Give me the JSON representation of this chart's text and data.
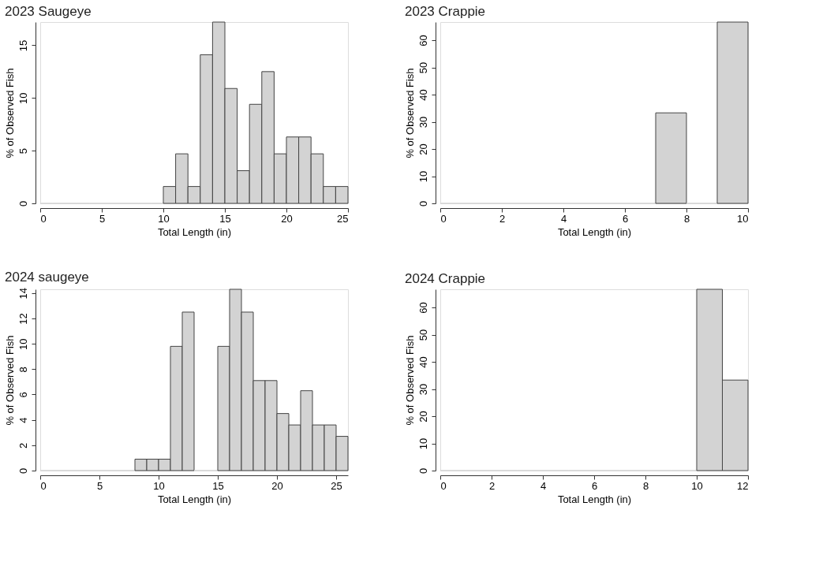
{
  "chart_data": [
    {
      "type": "histogram",
      "title": "2023 Saugeye",
      "xlabel": "Total Length (in)",
      "ylabel": "% of Observed Fish",
      "color": "#d3d3d3",
      "bins": [
        0,
        1,
        2,
        3,
        4,
        5,
        6,
        7,
        8,
        9,
        10,
        11,
        12,
        13,
        14,
        15,
        16,
        17,
        18,
        19,
        20,
        21,
        22,
        23,
        24,
        25
      ],
      "values": [
        0,
        0,
        0,
        0,
        0,
        0,
        0,
        0,
        0,
        0,
        1.6,
        4.7,
        1.6,
        14.1,
        17.2,
        10.9,
        3.1,
        9.4,
        12.5,
        4.7,
        6.3,
        6.3,
        4.7,
        1.6,
        1.6
      ],
      "xlim": [
        0,
        25
      ],
      "xticks": [
        0,
        5,
        10,
        15,
        20,
        25
      ],
      "ylim": [
        0,
        17.2
      ],
      "yticks": [
        0,
        5,
        10,
        15
      ]
    },
    {
      "type": "histogram",
      "title": "2023 Crappie",
      "xlabel": "Total Length (in)",
      "ylabel": "% of Observed Fish",
      "color": "#d3d3d3",
      "bins": [
        0,
        1,
        2,
        3,
        4,
        5,
        6,
        7,
        8,
        9,
        10
      ],
      "values": [
        0,
        0,
        0,
        0,
        0,
        0,
        0,
        33.3,
        0,
        66.7
      ],
      "xlim": [
        0,
        10
      ],
      "xticks": [
        0,
        2,
        4,
        6,
        8,
        10
      ],
      "ylim": [
        0,
        66.7
      ],
      "yticks": [
        0,
        10,
        20,
        30,
        40,
        50,
        60
      ]
    },
    {
      "type": "histogram",
      "title": "2024 saugeye",
      "xlabel": "Total Length (in)",
      "ylabel": "% of Observed Fish",
      "color": "#d3d3d3",
      "bins": [
        0,
        1,
        2,
        3,
        4,
        5,
        6,
        7,
        8,
        9,
        10,
        11,
        12,
        13,
        14,
        15,
        16,
        17,
        18,
        19,
        20,
        21,
        22,
        23,
        24,
        25,
        26
      ],
      "values": [
        0,
        0,
        0,
        0,
        0,
        0,
        0,
        0,
        0.9,
        0.9,
        0.9,
        9.8,
        12.5,
        0,
        0,
        9.8,
        14.3,
        12.5,
        7.1,
        7.1,
        4.5,
        3.6,
        6.3,
        3.6,
        3.6,
        2.7
      ],
      "xlim": [
        0,
        26
      ],
      "xticks": [
        0,
        5,
        10,
        15,
        20,
        25
      ],
      "ylim": [
        0,
        14.3
      ],
      "yticks": [
        0,
        2,
        4,
        6,
        8,
        10,
        12,
        14
      ]
    },
    {
      "type": "histogram",
      "title": "2024 Crappie",
      "xlabel": "Total Length (in)",
      "ylabel": "% of Observed Fish",
      "color": "#d3d3d3",
      "bins": [
        0,
        1,
        2,
        3,
        4,
        5,
        6,
        7,
        8,
        9,
        10,
        11,
        12
      ],
      "values": [
        0,
        0,
        0,
        0,
        0,
        0,
        0,
        0,
        0,
        0,
        66.7,
        33.3
      ],
      "xlim": [
        0,
        12
      ],
      "xticks": [
        0,
        2,
        4,
        6,
        8,
        10,
        12
      ],
      "ylim": [
        0,
        66.7
      ],
      "yticks": [
        0,
        10,
        20,
        30,
        40,
        50,
        60
      ]
    }
  ]
}
